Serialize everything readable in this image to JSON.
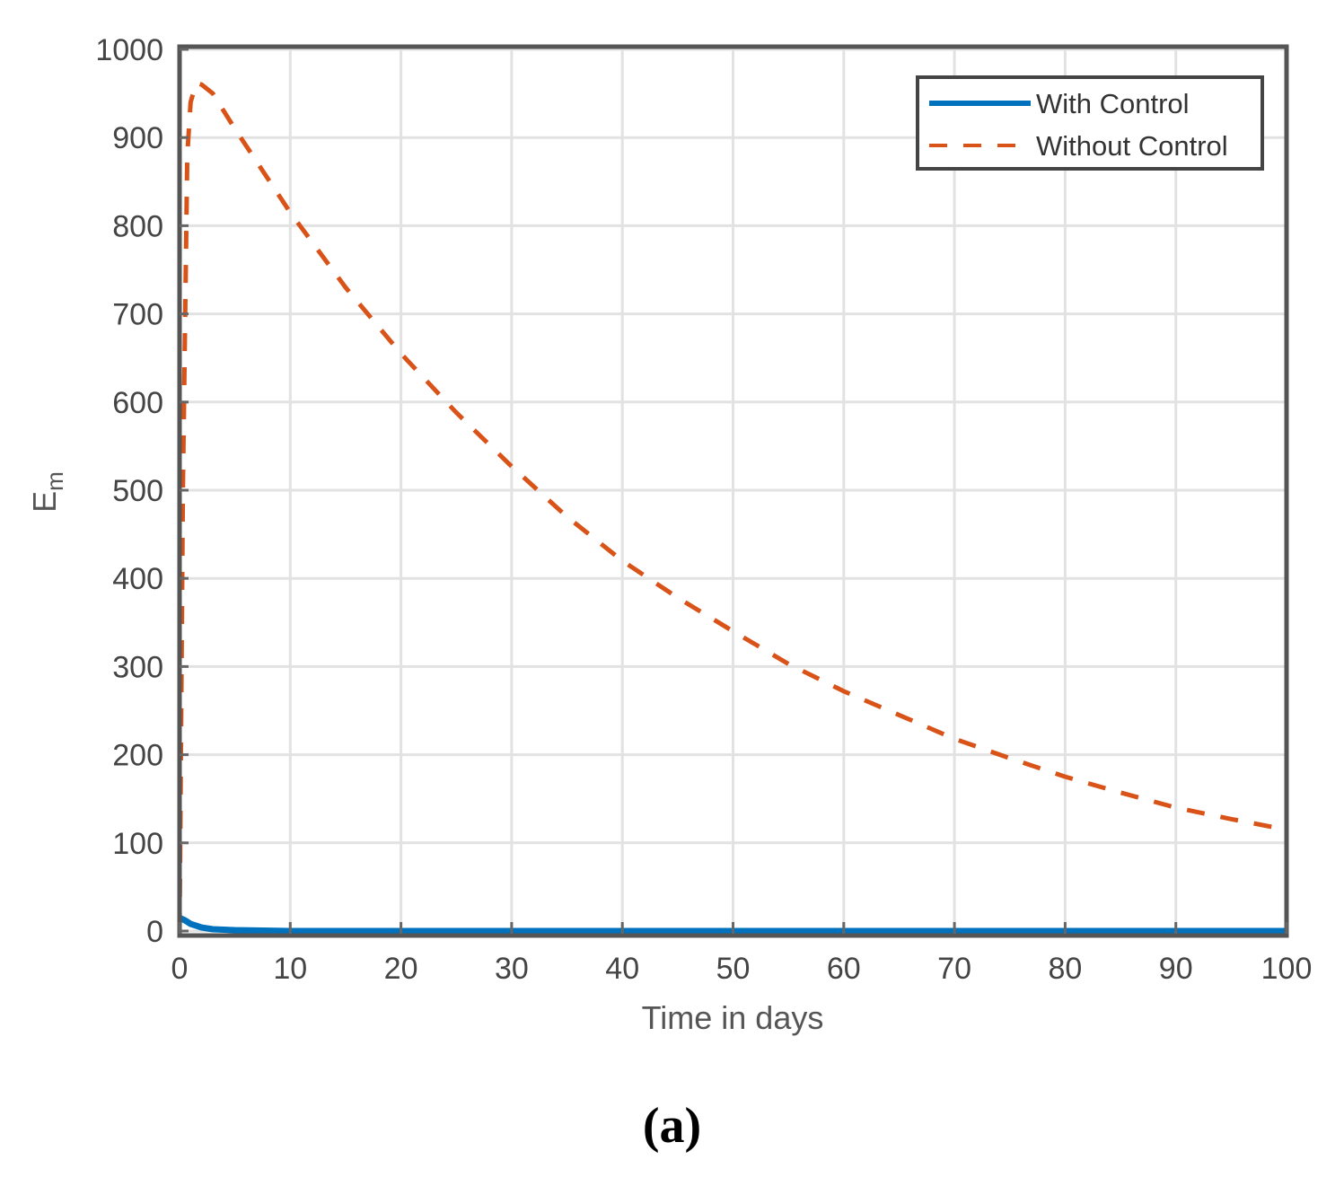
{
  "caption": "(a)",
  "chart_data": {
    "type": "line",
    "title": "",
    "xlabel": "Time in days",
    "ylabel": "E",
    "ylabel_subscript": "m",
    "xlim": [
      0,
      100
    ],
    "ylim": [
      0,
      1000
    ],
    "xticks": [
      0,
      10,
      20,
      30,
      40,
      50,
      60,
      70,
      80,
      90,
      100
    ],
    "yticks": [
      0,
      100,
      200,
      300,
      400,
      500,
      600,
      700,
      800,
      900,
      1000
    ],
    "grid": true,
    "legend_position": "upper right",
    "series": [
      {
        "name": "With Control",
        "style": "solid",
        "color": "#0072BD",
        "x": [
          0,
          0.5,
          1,
          2,
          3,
          5,
          10,
          20,
          30,
          40,
          50,
          60,
          70,
          80,
          90,
          100
        ],
        "y": [
          15,
          12,
          8,
          4,
          2,
          1,
          0,
          0,
          0,
          0,
          0,
          0,
          0,
          0,
          0,
          0
        ]
      },
      {
        "name": "Without Control",
        "style": "dashed",
        "color": "#D95319",
        "x": [
          0,
          0.3,
          0.7,
          1,
          1.5,
          2,
          3,
          5,
          10,
          15,
          20,
          25,
          30,
          35,
          40,
          45,
          50,
          55,
          60,
          65,
          70,
          75,
          80,
          85,
          90,
          95,
          100
        ],
        "y": [
          0,
          500,
          880,
          940,
          962,
          960,
          950,
          910,
          815,
          730,
          655,
          588,
          527,
          470,
          420,
          378,
          340,
          303,
          272,
          245,
          218,
          196,
          175,
          157,
          140,
          127,
          115
        ]
      }
    ]
  }
}
